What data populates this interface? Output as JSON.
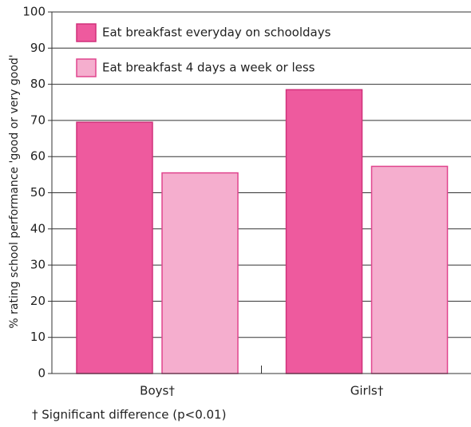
{
  "chart_data": {
    "type": "bar",
    "y_label": "% rating school performance 'good or very good'",
    "categories": [
      "Boys†",
      "Girls†"
    ],
    "series": [
      {
        "name": "Eat breakfast everyday on schooldays",
        "color": "#ee5a9e",
        "values": [
          69.5,
          78.5
        ]
      },
      {
        "name": "Eat breakfast 4 days a week or less",
        "color": "#f5aece",
        "values": [
          55.5,
          57.3
        ]
      }
    ],
    "ylim": [
      0,
      100
    ],
    "yticks": [
      0,
      10,
      20,
      30,
      40,
      50,
      60,
      70,
      80,
      90,
      100
    ],
    "grid": true,
    "legend": "upper left",
    "note": "† Significant difference (p<0.01)"
  }
}
